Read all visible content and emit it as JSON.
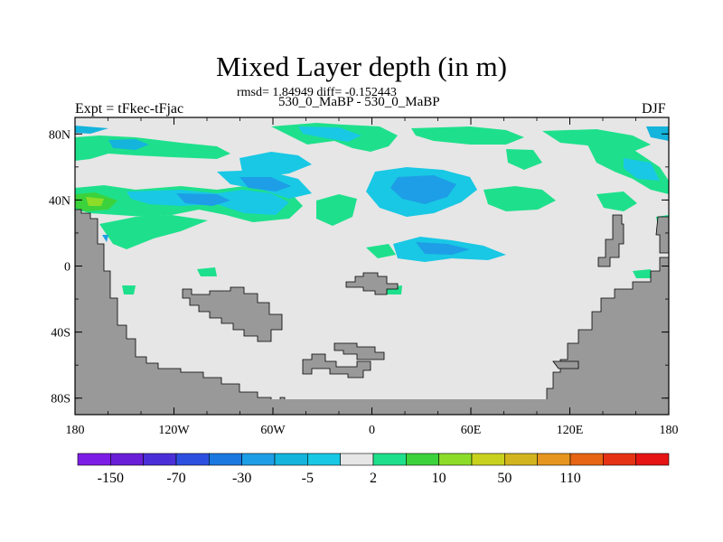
{
  "figure": {
    "title": "Mixed Layer depth (in m)",
    "stats_line": "rmsd= 1.84949 diff= -0.152443",
    "runs_line": "530_0_MaBP - 530_0_MaBP",
    "left_label": "Expt = tFkec-tFjac",
    "right_label": "DJF"
  },
  "map": {
    "projection": "cylindrical-equidistant",
    "lon_range": [
      -180,
      180
    ],
    "lat_range": [
      -90,
      90
    ],
    "background_color": "#e6e6e6",
    "land_color": "#999999",
    "x_ticks": [
      {
        "value": -180,
        "label": "180"
      },
      {
        "value": -120,
        "label": "120W"
      },
      {
        "value": -60,
        "label": "60W"
      },
      {
        "value": 0,
        "label": "0"
      },
      {
        "value": 60,
        "label": "60E"
      },
      {
        "value": 120,
        "label": "120E"
      },
      {
        "value": 180,
        "label": "180"
      }
    ],
    "y_ticks": [
      {
        "value": 80,
        "label": "80N"
      },
      {
        "value": 40,
        "label": "40N"
      },
      {
        "value": 0,
        "label": "0"
      },
      {
        "value": -40,
        "label": "40S"
      },
      {
        "value": -80,
        "label": "80S"
      }
    ]
  },
  "colorbar": {
    "colors": [
      "#7d1ee6",
      "#6a1ed8",
      "#4a2fd8",
      "#2d4fe0",
      "#1a78e0",
      "#1e9ee6",
      "#14b4dc",
      "#18c8e4",
      "#e6e6e6",
      "#1ee08c",
      "#3cd23c",
      "#8cdc28",
      "#c8d21e",
      "#d2b41e",
      "#e6961e",
      "#e66414",
      "#e63214",
      "#e61414"
    ],
    "labels": [
      {
        "boundary": 1,
        "text": "-150"
      },
      {
        "boundary": 3,
        "text": "-70"
      },
      {
        "boundary": 5,
        "text": "-30"
      },
      {
        "boundary": 7,
        "text": "-5"
      },
      {
        "boundary": 9,
        "text": "2"
      },
      {
        "boundary": 11,
        "text": "10"
      },
      {
        "boundary": 13,
        "text": "50"
      },
      {
        "boundary": 15,
        "text": "110"
      }
    ]
  }
}
